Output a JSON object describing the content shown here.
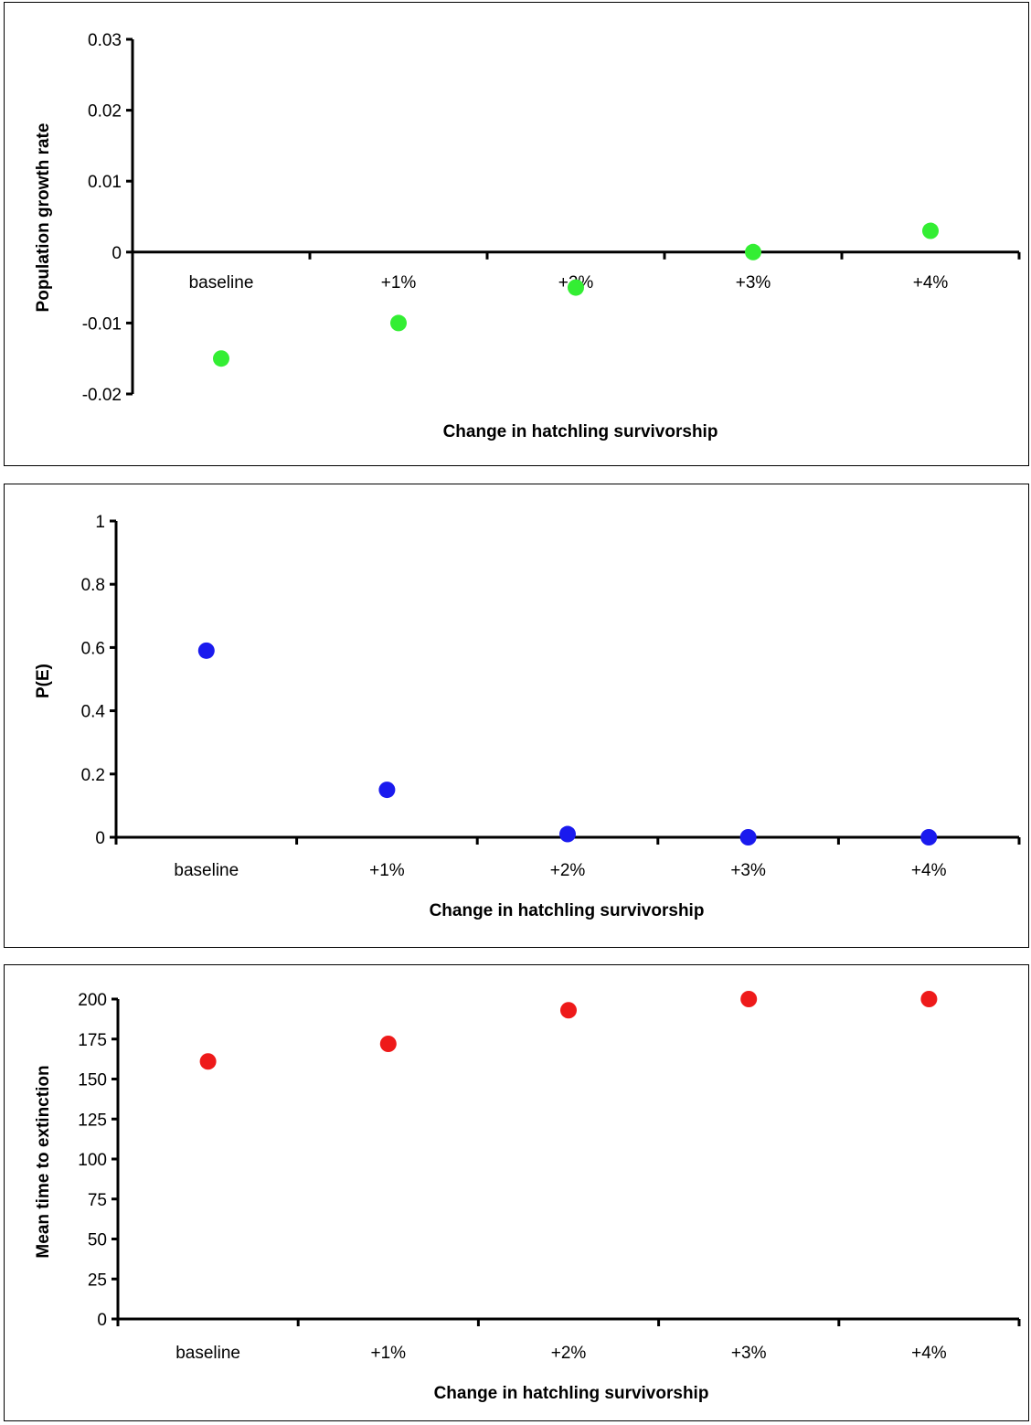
{
  "chart_data": [
    {
      "type": "scatter",
      "categories": [
        "baseline",
        "+1%",
        "+2%",
        "+3%",
        "+4%"
      ],
      "values": [
        -0.015,
        -0.01,
        -0.005,
        0.0,
        0.003
      ],
      "xlabel": "Change in hatchling survivorship",
      "ylabel": "Population growth rate",
      "ylim": [
        -0.02,
        0.03
      ],
      "yticks": [
        "-0.02",
        "-0.01",
        "0",
        "0.01",
        "0.02",
        "0.03"
      ],
      "ytick_values": [
        -0.02,
        -0.01,
        0,
        0.01,
        0.02,
        0.03
      ],
      "color": "#33ee33",
      "grid": false
    },
    {
      "type": "scatter",
      "categories": [
        "baseline",
        "+1%",
        "+2%",
        "+3%",
        "+4%"
      ],
      "values": [
        0.59,
        0.15,
        0.01,
        0.0,
        0.0
      ],
      "xlabel": "Change in hatchling survivorship",
      "ylabel": "P(E)",
      "ylim": [
        0,
        1
      ],
      "yticks": [
        "0",
        "0.2",
        "0.4",
        "0.6",
        "0.8",
        "1"
      ],
      "ytick_values": [
        0,
        0.2,
        0.4,
        0.6,
        0.8,
        1
      ],
      "color": "#1a1aee",
      "grid": false
    },
    {
      "type": "scatter",
      "categories": [
        "baseline",
        "+1%",
        "+2%",
        "+3%",
        "+4%"
      ],
      "values": [
        161,
        172,
        193,
        200,
        200
      ],
      "xlabel": "Change in hatchling survivorship",
      "ylabel": "Mean time to extinction",
      "ylim": [
        0,
        200
      ],
      "yticks": [
        "0",
        "25",
        "50",
        "75",
        "100",
        "125",
        "150",
        "175",
        "200"
      ],
      "ytick_values": [
        0,
        25,
        50,
        75,
        100,
        125,
        150,
        175,
        200
      ],
      "color": "#ee1a1a",
      "grid": false
    }
  ]
}
